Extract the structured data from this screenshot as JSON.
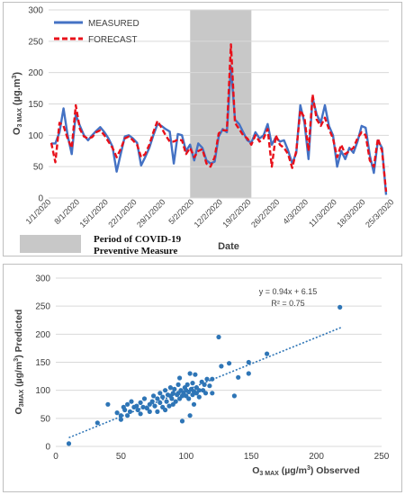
{
  "chart_data": [
    {
      "type": "line",
      "ylabel": "O3 MAX (µg.m3)",
      "ylabel_main": "O",
      "ylabel_sub": "3 MAX",
      "ylabel_unit": " (µg.m",
      "ylabel_sup": "3",
      "ylabel_close": ")",
      "xlabel": "Date",
      "ylim": [
        0,
        300
      ],
      "yticks": [
        0,
        50,
        100,
        150,
        200,
        250,
        300
      ],
      "grid": "horizontal",
      "legend_position": "top-left",
      "xticks": [
        "1/1/2020",
        "8/1/2020",
        "15/1/2020",
        "22/1/2020",
        "29/1/2020",
        "5/2/2020",
        "12/2/2020",
        "19/2/2020",
        "26/2/2020",
        "4/3/2020",
        "11/3/2020",
        "18/3/2020",
        "25/3/2020"
      ],
      "shaded_period": {
        "start_day": 34,
        "end_day": 49,
        "label_line1": "Period of COVID-19",
        "label_line2": "Preventive Measure"
      },
      "series": [
        {
          "name": "MEASURED",
          "color": "#4472c4",
          "style": "solid",
          "values": [
            87,
            87,
            105,
            143,
            100,
            70,
            133,
            115,
            100,
            92,
            100,
            107,
            113,
            105,
            95,
            82,
            42,
            70,
            98,
            100,
            95,
            88,
            52,
            65,
            80,
            100,
            118,
            115,
            110,
            106,
            55,
            102,
            100,
            75,
            85,
            60,
            87,
            80,
            60,
            55,
            58,
            98,
            110,
            105,
            210,
            125,
            118,
            105,
            92,
            88,
            105,
            95,
            100,
            118,
            85,
            97,
            90,
            92,
            76,
            55,
            72,
            148,
            120,
            62,
            160,
            133,
            120,
            148,
            115,
            100,
            50,
            75,
            62,
            80,
            72,
            90,
            115,
            112,
            68,
            40,
            92,
            80,
            5
          ]
        },
        {
          "name": "FORECAST",
          "color": "#e8101a",
          "style": "dashed",
          "values": [
            88,
            57,
            120,
            115,
            95,
            80,
            148,
            110,
            98,
            95,
            97,
            105,
            108,
            100,
            90,
            80,
            65,
            78,
            95,
            98,
            92,
            85,
            65,
            70,
            85,
            105,
            123,
            112,
            100,
            90,
            90,
            93,
            92,
            70,
            80,
            65,
            75,
            78,
            55,
            50,
            65,
            103,
            108,
            108,
            245,
            120,
            110,
            100,
            95,
            85,
            100,
            90,
            95,
            110,
            50,
            100,
            85,
            80,
            70,
            48,
            75,
            140,
            128,
            75,
            165,
            125,
            115,
            128,
            110,
            95,
            65,
            85,
            70,
            75,
            80,
            95,
            105,
            100,
            60,
            50,
            95,
            75,
            10
          ]
        }
      ]
    },
    {
      "type": "scatter",
      "ylabel": "O3MAX (µg/m3) Predicted",
      "ylabel_main": "O",
      "ylabel_sub": "3MAX",
      "ylabel_unit": " (µg/m",
      "ylabel_sup": "3",
      "ylabel_close": ") Predicted",
      "xlabel": "O3 MAX (µg/m3) Observed",
      "xlabel_main": "O",
      "xlabel_sub": "3 MAX",
      "xlabel_unit": " (µg/m",
      "xlabel_sup": "3",
      "xlabel_close": ") Observed",
      "xlim": [
        0,
        250
      ],
      "ylim": [
        0,
        300
      ],
      "xticks": [
        0,
        50,
        100,
        150,
        200,
        250
      ],
      "yticks": [
        0,
        50,
        100,
        150,
        200,
        250,
        300
      ],
      "grid": "horizontal",
      "point_color": "#2e75b6",
      "trendline": {
        "slope": 0.94,
        "intercept": 6.15,
        "x_range": [
          10,
          220
        ],
        "style": "dotted"
      },
      "equation": "y = 0.94x + 6.15",
      "r2": "R² = 0.75",
      "points": [
        [
          10,
          5
        ],
        [
          32,
          42
        ],
        [
          40,
          75
        ],
        [
          47,
          60
        ],
        [
          50,
          48
        ],
        [
          50,
          55
        ],
        [
          52,
          70
        ],
        [
          53,
          65
        ],
        [
          55,
          55
        ],
        [
          55,
          75
        ],
        [
          57,
          62
        ],
        [
          58,
          80
        ],
        [
          60,
          70
        ],
        [
          62,
          72
        ],
        [
          63,
          65
        ],
        [
          65,
          78
        ],
        [
          65,
          58
        ],
        [
          67,
          70
        ],
        [
          68,
          85
        ],
        [
          70,
          68
        ],
        [
          72,
          75
        ],
        [
          72,
          62
        ],
        [
          74,
          80
        ],
        [
          75,
          90
        ],
        [
          76,
          72
        ],
        [
          78,
          85
        ],
        [
          78,
          62
        ],
        [
          80,
          95
        ],
        [
          80,
          78
        ],
        [
          82,
          70
        ],
        [
          82,
          88
        ],
        [
          84,
          100
        ],
        [
          84,
          65
        ],
        [
          85,
          80
        ],
        [
          86,
          92
        ],
        [
          87,
          72
        ],
        [
          88,
          105
        ],
        [
          88,
          90
        ],
        [
          89,
          85
        ],
        [
          90,
          75
        ],
        [
          90,
          95
        ],
        [
          91,
          102
        ],
        [
          92,
          80
        ],
        [
          93,
          92
        ],
        [
          94,
          110
        ],
        [
          94,
          95
        ],
        [
          95,
          85
        ],
        [
          95,
          122
        ],
        [
          96,
          100
        ],
        [
          97,
          90
        ],
        [
          97,
          45
        ],
        [
          98,
          95
        ],
        [
          99,
          105
        ],
        [
          100,
          90
        ],
        [
          100,
          100
        ],
        [
          101,
          110
        ],
        [
          102,
          85
        ],
        [
          102,
          97
        ],
        [
          103,
          130
        ],
        [
          103,
          55
        ],
        [
          104,
          102
        ],
        [
          105,
          92
        ],
        [
          105,
          113
        ],
        [
          106,
          98
        ],
        [
          106,
          75
        ],
        [
          107,
          128
        ],
        [
          108,
          95
        ],
        [
          108,
          105
        ],
        [
          110,
          88
        ],
        [
          110,
          100
        ],
        [
          112,
          115
        ],
        [
          113,
          100
        ],
        [
          114,
          110
        ],
        [
          115,
          95
        ],
        [
          116,
          120
        ],
        [
          118,
          108
        ],
        [
          120,
          120
        ],
        [
          120,
          95
        ],
        [
          125,
          195
        ],
        [
          127,
          143
        ],
        [
          133,
          148
        ],
        [
          137,
          90
        ],
        [
          140,
          123
        ],
        [
          148,
          130
        ],
        [
          148,
          150
        ],
        [
          162,
          165
        ],
        [
          218,
          248
        ]
      ]
    }
  ]
}
